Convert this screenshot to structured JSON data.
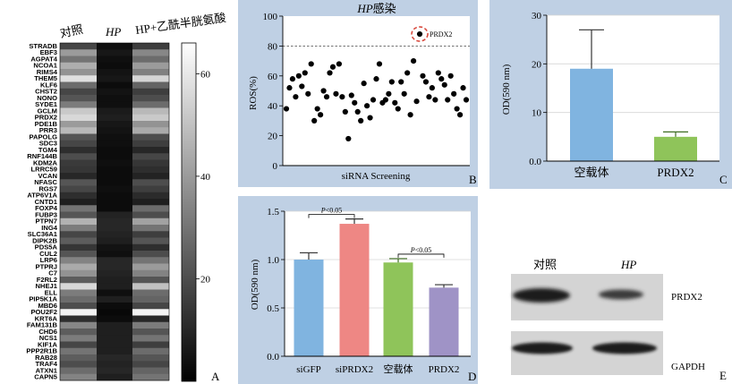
{
  "colors": {
    "panel_bg": "#bfd0e4",
    "sky_bar": "#80b4e0",
    "green_bar": "#8fc45a",
    "salmon_bar": "#ee8784",
    "purple_bar": "#9f93c6",
    "ring": "#d84a3e"
  },
  "heatmap": {
    "panel_letter": "A",
    "columns": [
      "对照",
      "HP",
      "HP+乙酰半胱氨酸"
    ],
    "genes": [
      "STRADB",
      "EBF3",
      "AGPAT4",
      "NCOA1",
      "RIMS4",
      "THEM5",
      "KLF6",
      "CHST2",
      "NONO",
      "SYDE1",
      "GCLM",
      "PRDX2",
      "PDE1B",
      "PRR3",
      "PAPOLG",
      "SDC3",
      "TGM4",
      "RNF144B",
      "KDM2A",
      "LRRC59",
      "VCAN",
      "NFASC",
      "RGS7",
      "ATP6V1A",
      "CNTD1",
      "FOXP4",
      "FUBP3",
      "PTPN7",
      "ING4",
      "SLC36A1",
      "DIPK2B",
      "PDS5A",
      "CUL2",
      "LRP6",
      "PTPRJ",
      "C7",
      "F2RL2",
      "NHEJ1",
      "ELL",
      "PIP5K1A",
      "MBD6",
      "POU2F2",
      "KRT6A",
      "FAM131B",
      "CHD6",
      "NCS1",
      "KIF1A",
      "PPP2R1B",
      "RAB28",
      "TRAF4",
      "ATXN1",
      "CAPN5"
    ],
    "values": [
      [
        18,
        4,
        16
      ],
      [
        40,
        6,
        35
      ],
      [
        30,
        4,
        28
      ],
      [
        45,
        3,
        40
      ],
      [
        38,
        5,
        33
      ],
      [
        58,
        6,
        55
      ],
      [
        28,
        3,
        26
      ],
      [
        18,
        5,
        16
      ],
      [
        22,
        4,
        20
      ],
      [
        32,
        4,
        28
      ],
      [
        52,
        7,
        48
      ],
      [
        56,
        8,
        52
      ],
      [
        40,
        6,
        38
      ],
      [
        48,
        5,
        44
      ],
      [
        22,
        4,
        20
      ],
      [
        18,
        4,
        16
      ],
      [
        12,
        3,
        10
      ],
      [
        20,
        3,
        18
      ],
      [
        15,
        4,
        14
      ],
      [
        14,
        3,
        12
      ],
      [
        10,
        3,
        9
      ],
      [
        22,
        3,
        20
      ],
      [
        18,
        4,
        16
      ],
      [
        12,
        3,
        11
      ],
      [
        8,
        3,
        8
      ],
      [
        30,
        3,
        28
      ],
      [
        22,
        9,
        20
      ],
      [
        46,
        10,
        42
      ],
      [
        32,
        10,
        30
      ],
      [
        18,
        9,
        16
      ],
      [
        24,
        8,
        22
      ],
      [
        14,
        5,
        12
      ],
      [
        22,
        4,
        20
      ],
      [
        34,
        10,
        30
      ],
      [
        44,
        10,
        40
      ],
      [
        38,
        9,
        34
      ],
      [
        24,
        8,
        22
      ],
      [
        56,
        8,
        50
      ],
      [
        32,
        4,
        28
      ],
      [
        28,
        8,
        26
      ],
      [
        20,
        3,
        18
      ],
      [
        63,
        2,
        63
      ],
      [
        12,
        3,
        10
      ],
      [
        35,
        8,
        32
      ],
      [
        24,
        8,
        22
      ],
      [
        32,
        8,
        30
      ],
      [
        18,
        8,
        16
      ],
      [
        30,
        8,
        28
      ],
      [
        24,
        10,
        22
      ],
      [
        20,
        9,
        18
      ],
      [
        28,
        10,
        26
      ],
      [
        34,
        8,
        30
      ]
    ],
    "colorbar": {
      "ticks": [
        20,
        40,
        60
      ],
      "min": 0,
      "max": 66
    }
  },
  "chart_data": [
    {
      "type": "scatter",
      "panel_letter": "B",
      "title_italic": "HP",
      "title_rest": "感染",
      "xlabel": "siRNA Screening",
      "ylabel": "ROS(%)",
      "ylim": [
        0,
        100
      ],
      "yticks": [
        0,
        20,
        40,
        60,
        80,
        100
      ],
      "threshold": 80,
      "highlight": {
        "label": "PRDX2",
        "y": 88,
        "index": 43
      },
      "y": [
        38,
        52,
        58,
        46,
        60,
        53,
        62,
        48,
        68,
        30,
        38,
        34,
        50,
        46,
        62,
        66,
        48,
        68,
        46,
        36,
        18,
        47,
        42,
        36,
        30,
        55,
        40,
        32,
        44,
        58,
        68,
        42,
        44,
        48,
        56,
        42,
        38,
        56,
        48,
        62,
        34,
        70,
        43,
        88,
        60,
        56,
        46,
        52,
        44,
        62,
        58,
        54,
        44,
        60,
        48,
        38,
        34,
        52,
        44
      ]
    },
    {
      "type": "bar",
      "panel_letter": "C",
      "ylabel": "OD(590 nm)",
      "ylim": [
        0,
        30
      ],
      "yticks": [
        0.0,
        10,
        20,
        30
      ],
      "categories": [
        "空载体",
        "PRDX2"
      ],
      "values": [
        19,
        5
      ],
      "errors": [
        8,
        1
      ]
    },
    {
      "type": "bar",
      "panel_letter": "D",
      "ylabel": "OD(590 nm)",
      "ylim": [
        0,
        1.5
      ],
      "yticks": [
        0.0,
        0.5,
        1.0,
        1.5
      ],
      "categories": [
        "siGFP",
        "siPRDX2",
        "空载体",
        "PRDX2"
      ],
      "values": [
        1.0,
        1.37,
        0.97,
        0.71
      ],
      "errors": [
        0.07,
        0.05,
        0.04,
        0.03
      ],
      "significance": [
        {
          "label": "P<0.05",
          "from": 0,
          "to": 1
        },
        {
          "label": "P<0.05",
          "from": 2,
          "to": 3
        }
      ]
    }
  ],
  "western_blot": {
    "panel_letter": "E",
    "columns": [
      "对照",
      "HP"
    ],
    "bands": [
      "PRDX2",
      "GAPDH"
    ]
  }
}
